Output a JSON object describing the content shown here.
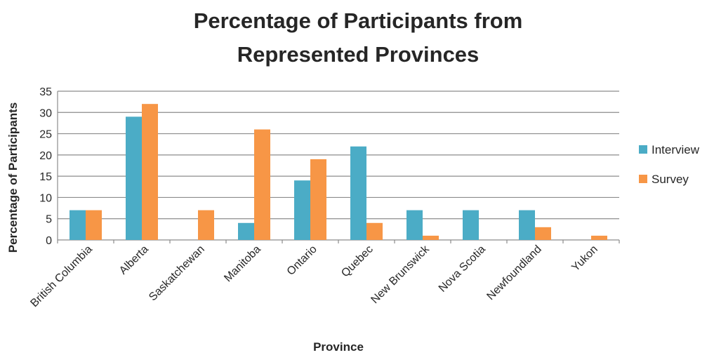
{
  "chart_data": {
    "type": "bar",
    "title_lines": [
      "Percentage of Participants from",
      "Represented Provinces"
    ],
    "xlabel": "Province",
    "ylabel": "Percentage of Participants",
    "categories": [
      "British Columbia",
      "Alberta",
      "Saskatchewan",
      "Manitoba",
      "Ontario",
      "Quebec",
      "New Brunswick",
      "Nova Scotia",
      "Newfoundland",
      "Yukon"
    ],
    "series": [
      {
        "name": "Interview",
        "color": "#4bacc6",
        "values": [
          7,
          29,
          0,
          4,
          14,
          22,
          7,
          7,
          7,
          0
        ]
      },
      {
        "name": "Survey",
        "color": "#f79646",
        "values": [
          7,
          32,
          7,
          26,
          19,
          4,
          1,
          0,
          3,
          1
        ]
      }
    ],
    "ylim": [
      0,
      35
    ],
    "yticks": [
      "0",
      "5",
      "10",
      "15",
      "20",
      "25",
      "30",
      "35"
    ],
    "grid": true,
    "legend_position": "right"
  }
}
